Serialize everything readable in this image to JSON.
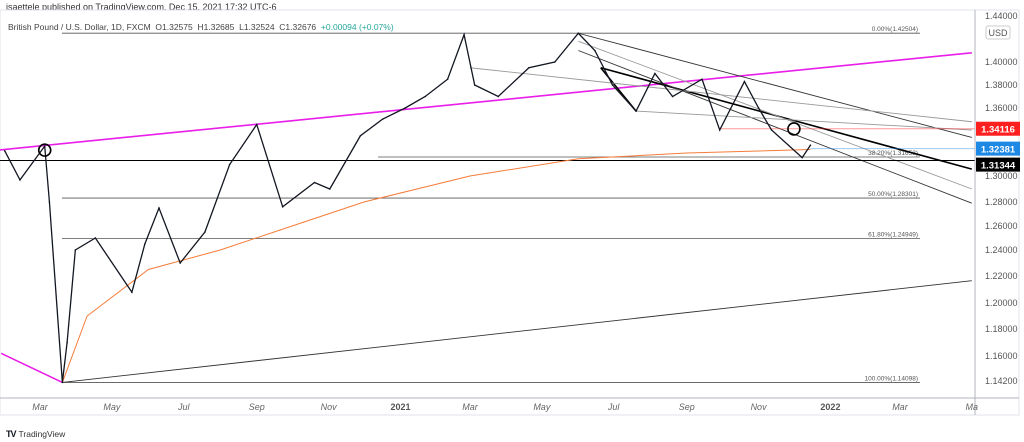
{
  "publisher": "jsaettele published on TradingView.com, Dec 15, 2021 17:32 UTC-6",
  "legend": {
    "symbol": "British Pound / U.S. Dollar, 1D, FXCM",
    "open": "O1.32575",
    "high": "H1.32685",
    "low": "L1.32524",
    "close": "C1.32676",
    "change": "+0.00094 (+0.07%)"
  },
  "currency": "USD",
  "logo": "TradingView",
  "chart_data": {
    "type": "line",
    "title": "",
    "y_ticks": [
      "1.44000",
      "1.40000",
      "1.38000",
      "1.36000",
      "1.30000",
      "1.28000",
      "1.26000",
      "1.24000",
      "1.22000",
      "1.20000",
      "1.18000",
      "1.16000",
      "1.14200"
    ],
    "x_ticks": [
      "Mar",
      "May",
      "Jul",
      "Sep",
      "Nov",
      "2021",
      "Mar",
      "May",
      "Jul",
      "Sep",
      "Nov",
      "2022",
      "Mar",
      "Ma"
    ],
    "grid": false,
    "series": [
      {
        "color": "#131722",
        "points": [
          [
            "2020-01-31",
            1.322
          ],
          [
            "2020-02-13",
            1.297
          ],
          [
            "2020-03-05",
            1.326
          ],
          [
            "2020-03-09",
            1.28
          ],
          [
            "2020-03-20",
            1.141
          ],
          [
            "2020-03-24",
            1.17
          ],
          [
            "2020-03-31",
            1.24
          ],
          [
            "2020-04-17",
            1.25
          ],
          [
            "2020-05-18",
            1.208
          ],
          [
            "2020-05-29",
            1.245
          ],
          [
            "2020-06-10",
            1.275
          ],
          [
            "2020-06-28",
            1.23
          ],
          [
            "2020-07-19",
            1.255
          ],
          [
            "2020-08-09",
            1.31
          ],
          [
            "2020-09-01",
            1.345
          ],
          [
            "2020-09-23",
            1.276
          ],
          [
            "2020-10-20",
            1.295
          ],
          [
            "2020-11-02",
            1.29
          ],
          [
            "2020-11-28",
            1.335
          ],
          [
            "2020-12-17",
            1.35
          ],
          [
            "2021-01-05",
            1.36
          ],
          [
            "2021-01-22",
            1.37
          ],
          [
            "2021-02-10",
            1.385
          ],
          [
            "2021-02-24",
            1.4237
          ],
          [
            "2021-03-05",
            1.38
          ],
          [
            "2021-03-25",
            1.37
          ],
          [
            "2021-04-20",
            1.395
          ],
          [
            "2021-05-12",
            1.4
          ],
          [
            "2021-06-01",
            1.425
          ],
          [
            "2021-06-15",
            1.41
          ],
          [
            "2021-06-30",
            1.38
          ],
          [
            "2021-07-20",
            1.3572
          ],
          [
            "2021-08-05",
            1.39
          ],
          [
            "2021-08-20",
            1.37
          ],
          [
            "2021-09-14",
            1.385
          ],
          [
            "2021-09-29",
            1.34
          ],
          [
            "2021-10-20",
            1.383
          ],
          [
            "2021-11-01",
            1.36
          ],
          [
            "2021-11-12",
            1.34
          ],
          [
            "2021-12-08",
            1.316
          ],
          [
            "2021-12-15",
            1.32676
          ]
        ]
      }
    ],
    "moving_average": {
      "color": "#f57c3a",
      "points": [
        [
          "2020-03-20",
          1.141
        ],
        [
          "2020-04-10",
          1.19
        ],
        [
          "2020-06-01",
          1.225
        ],
        [
          "2020-08-01",
          1.24
        ],
        [
          "2020-10-01",
          1.26
        ],
        [
          "2020-12-01",
          1.28
        ],
        [
          "2021-03-01",
          1.3
        ],
        [
          "2021-06-01",
          1.315
        ],
        [
          "2021-09-01",
          1.32
        ],
        [
          "2021-12-15",
          1.323
        ]
      ]
    },
    "fibonacci": [
      {
        "label": "0.00%(1.42504)",
        "price": 1.42504
      },
      {
        "label": "38.20%(1.31653)",
        "price": 1.31653
      },
      {
        "label": "50.00%(1.28301)",
        "price": 1.28301
      },
      {
        "label": "61.80%(1.24949)",
        "price": 1.24949
      },
      {
        "label": "100.00%(1.14098)",
        "price": 1.14098
      }
    ],
    "price_labels": [
      {
        "value": "1.34116",
        "price": 1.34116,
        "color": "#ff1f1f",
        "from": "2021-09-29"
      },
      {
        "value": "1.32381",
        "price": 1.32381,
        "color": "#1e88e5",
        "from": "2021-12-15"
      },
      {
        "value": "1.31344",
        "price": 1.31344,
        "color": "#000000",
        "from": "2020-01-01"
      }
    ],
    "trendlines": [
      {
        "color": "#e91ee8",
        "from": [
          "2020-01-25",
          1.3225
        ],
        "to": [
          "2022-05-01",
          1.408
        ]
      },
      {
        "color": "#e91ee8",
        "from": [
          "2020-01-28",
          1.162
        ],
        "to": [
          "2020-03-20",
          1.14098
        ]
      },
      {
        "color": "#333333",
        "from": [
          "2020-03-20",
          1.14098
        ],
        "to": [
          "2022-05-01",
          1.2165
        ]
      },
      {
        "color": "#333333",
        "from": [
          "2021-06-01",
          1.425
        ],
        "to": [
          "2022-05-01",
          1.3335
        ]
      },
      {
        "color": "#000000",
        "from": [
          "2021-06-20",
          1.395
        ],
        "to": [
          "2022-05-01",
          1.306
        ]
      },
      {
        "color": "#999999",
        "from": [
          "2021-06-01",
          1.418
        ],
        "to": [
          "2022-05-01",
          1.29
        ]
      },
      {
        "color": "#333333",
        "from": [
          "2021-06-01",
          1.41
        ],
        "to": [
          "2022-05-01",
          1.279
        ]
      },
      {
        "color": "#000000",
        "from": [
          "2021-06-20",
          1.395
        ],
        "to": [
          "2021-07-20",
          1.3572
        ]
      },
      {
        "color": "#999999",
        "from": [
          "2021-07-20",
          1.3572
        ],
        "to": [
          "2022-05-01",
          1.34
        ]
      },
      {
        "color": "#999999",
        "from": [
          "2021-03-01",
          1.395
        ],
        "to": [
          "2022-05-01",
          1.3475
        ]
      }
    ],
    "circles": [
      [
        "2020-03-05",
        1.3225
      ],
      [
        "2021-12-01",
        1.341
      ]
    ]
  }
}
